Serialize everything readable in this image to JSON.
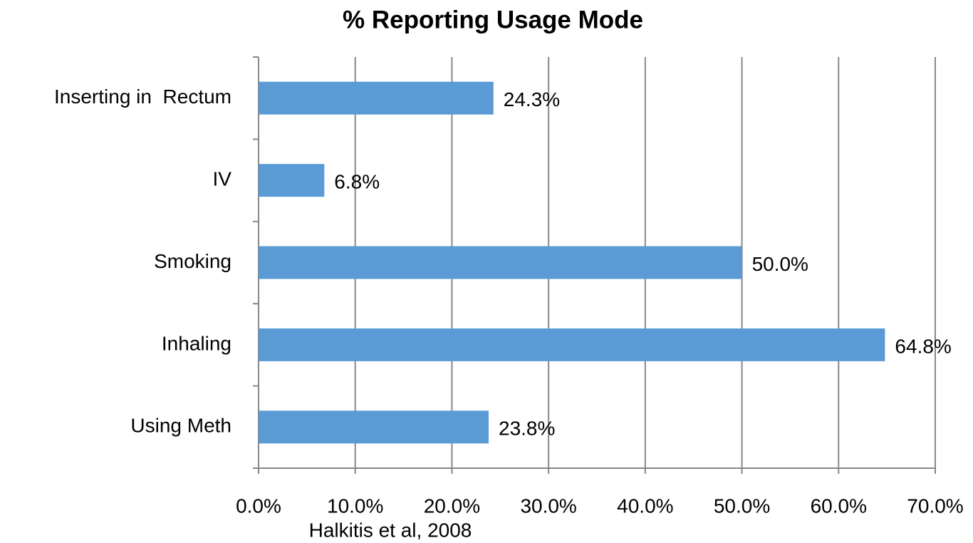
{
  "chart_data": {
    "type": "bar",
    "orientation": "horizontal",
    "title": "% Reporting Usage Mode",
    "categories": [
      "Inserting in  Rectum",
      "IV",
      "Smoking",
      "Inhaling",
      "Using Meth"
    ],
    "values": [
      24.3,
      6.8,
      50.0,
      64.8,
      23.8
    ],
    "value_labels": [
      "24.3%",
      "6.8%",
      "50.0%",
      "64.8%",
      "23.8%"
    ],
    "color": "#5b9bd5",
    "xlim": [
      0,
      70
    ],
    "xticks": [
      {
        "value": 0,
        "label": "0.0%"
      },
      {
        "value": 10,
        "label": "10.0%"
      },
      {
        "value": 20,
        "label": "20.0%"
      },
      {
        "value": 30,
        "label": "30.0%"
      },
      {
        "value": 40,
        "label": "40.0%"
      },
      {
        "value": 50,
        "label": "50.0%"
      },
      {
        "value": 60,
        "label": "60.0%"
      },
      {
        "value": 70,
        "label": "70.0%"
      }
    ],
    "grid": true,
    "annotation": "Halkitis et al, 2008"
  }
}
